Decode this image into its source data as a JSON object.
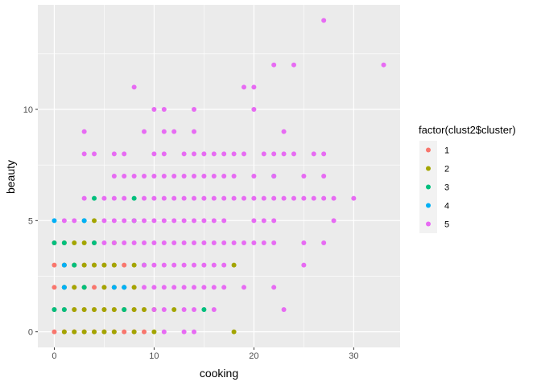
{
  "chart_data": {
    "type": "scatter",
    "xlabel": "cooking",
    "ylabel": "beauty",
    "xlim": [
      -1.65,
      34.65
    ],
    "ylim": [
      -0.7,
      14.7
    ],
    "x_ticks": [
      0,
      10,
      20,
      30
    ],
    "y_ticks": [
      0,
      5,
      10
    ],
    "x_tick_labels": [
      "0",
      "10",
      "20",
      "30"
    ],
    "y_tick_labels": [
      "0",
      "5",
      "10"
    ],
    "grid": true,
    "legend": {
      "title": "factor(clust2$cluster)",
      "position": "right",
      "entries": [
        "1",
        "2",
        "3",
        "4",
        "5"
      ]
    },
    "colors": {
      "1": "#F8766D",
      "2": "#A3A500",
      "3": "#00BF7D",
      "4": "#00B0F6",
      "5": "#E76BF3",
      "panel": "#EBEBEB"
    },
    "series": [
      {
        "name": "1",
        "points": [
          [
            0,
            0
          ],
          [
            1,
            0
          ],
          [
            2,
            0
          ],
          [
            3,
            0
          ],
          [
            4,
            0
          ],
          [
            5,
            0
          ],
          [
            6,
            0
          ],
          [
            7,
            0
          ],
          [
            8,
            0
          ],
          [
            9,
            0
          ],
          [
            0,
            1
          ],
          [
            1,
            1
          ],
          [
            2,
            1
          ],
          [
            3,
            1
          ],
          [
            4,
            1
          ],
          [
            5,
            1
          ],
          [
            6,
            1
          ],
          [
            7,
            1
          ],
          [
            8,
            1
          ],
          [
            9,
            1
          ],
          [
            0,
            2
          ],
          [
            1,
            2
          ],
          [
            2,
            2
          ],
          [
            3,
            2
          ],
          [
            4,
            2
          ],
          [
            5,
            2
          ],
          [
            6,
            2
          ],
          [
            7,
            2
          ],
          [
            8,
            2
          ],
          [
            0,
            3
          ],
          [
            1,
            3
          ],
          [
            2,
            3
          ],
          [
            3,
            3
          ],
          [
            4,
            3
          ],
          [
            5,
            3
          ],
          [
            6,
            3
          ],
          [
            7,
            3
          ],
          [
            0,
            4
          ],
          [
            4,
            4
          ]
        ]
      },
      {
        "name": "2",
        "points": [
          [
            1,
            0
          ],
          [
            2,
            0
          ],
          [
            3,
            0
          ],
          [
            4,
            0
          ],
          [
            5,
            0
          ],
          [
            6,
            0
          ],
          [
            8,
            0
          ],
          [
            10,
            0
          ],
          [
            18,
            0
          ],
          [
            2,
            1
          ],
          [
            3,
            1
          ],
          [
            4,
            1
          ],
          [
            5,
            1
          ],
          [
            6,
            1
          ],
          [
            7,
            1
          ],
          [
            8,
            1
          ],
          [
            9,
            1
          ],
          [
            10,
            1
          ],
          [
            12,
            1
          ],
          [
            1,
            2
          ],
          [
            2,
            2
          ],
          [
            3,
            2
          ],
          [
            5,
            2
          ],
          [
            6,
            2
          ],
          [
            8,
            2
          ],
          [
            1,
            3
          ],
          [
            2,
            3
          ],
          [
            3,
            3
          ],
          [
            4,
            3
          ],
          [
            5,
            3
          ],
          [
            6,
            3
          ],
          [
            8,
            3
          ],
          [
            18,
            3
          ],
          [
            1,
            4
          ],
          [
            2,
            4
          ],
          [
            3,
            4
          ],
          [
            6,
            4
          ],
          [
            4,
            5
          ]
        ]
      },
      {
        "name": "3",
        "points": [
          [
            0,
            1
          ],
          [
            1,
            1
          ],
          [
            7,
            1
          ],
          [
            15,
            1
          ],
          [
            1,
            2
          ],
          [
            3,
            2
          ],
          [
            7,
            2
          ],
          [
            2,
            3
          ],
          [
            9,
            3
          ],
          [
            0,
            4
          ],
          [
            1,
            4
          ],
          [
            4,
            4
          ],
          [
            8,
            5
          ],
          [
            3,
            5
          ],
          [
            4,
            6
          ],
          [
            8,
            6
          ]
        ]
      },
      {
        "name": "4",
        "points": [
          [
            0,
            5
          ],
          [
            3,
            5
          ],
          [
            1,
            2
          ],
          [
            6,
            2
          ],
          [
            7,
            2
          ],
          [
            1,
            3
          ],
          [
            22,
            7
          ]
        ]
      },
      {
        "name": "5",
        "points": [
          [
            27,
            14
          ],
          [
            33,
            12
          ],
          [
            22,
            12
          ],
          [
            24,
            12
          ],
          [
            19,
            11
          ],
          [
            20,
            11
          ],
          [
            8,
            11
          ],
          [
            10,
            10
          ],
          [
            11,
            10
          ],
          [
            14,
            10
          ],
          [
            20,
            10
          ],
          [
            3,
            9
          ],
          [
            9,
            9
          ],
          [
            11,
            9
          ],
          [
            12,
            9
          ],
          [
            14,
            9
          ],
          [
            23,
            9
          ],
          [
            3,
            8
          ],
          [
            4,
            8
          ],
          [
            6,
            8
          ],
          [
            7,
            8
          ],
          [
            10,
            8
          ],
          [
            11,
            8
          ],
          [
            13,
            8
          ],
          [
            14,
            8
          ],
          [
            15,
            8
          ],
          [
            16,
            8
          ],
          [
            17,
            8
          ],
          [
            18,
            8
          ],
          [
            19,
            8
          ],
          [
            21,
            8
          ],
          [
            22,
            8
          ],
          [
            23,
            8
          ],
          [
            24,
            8
          ],
          [
            26,
            8
          ],
          [
            27,
            8
          ],
          [
            6,
            7
          ],
          [
            7,
            7
          ],
          [
            8,
            7
          ],
          [
            9,
            7
          ],
          [
            10,
            7
          ],
          [
            11,
            7
          ],
          [
            12,
            7
          ],
          [
            13,
            7
          ],
          [
            14,
            7
          ],
          [
            15,
            7
          ],
          [
            16,
            7
          ],
          [
            17,
            7
          ],
          [
            18,
            7
          ],
          [
            20,
            7
          ],
          [
            22,
            7
          ],
          [
            25,
            7
          ],
          [
            27,
            7
          ],
          [
            3,
            6
          ],
          [
            5,
            6
          ],
          [
            6,
            6
          ],
          [
            7,
            6
          ],
          [
            9,
            6
          ],
          [
            10,
            6
          ],
          [
            11,
            6
          ],
          [
            12,
            6
          ],
          [
            13,
            6
          ],
          [
            14,
            6
          ],
          [
            15,
            6
          ],
          [
            16,
            6
          ],
          [
            17,
            6
          ],
          [
            18,
            6
          ],
          [
            19,
            6
          ],
          [
            20,
            6
          ],
          [
            21,
            6
          ],
          [
            22,
            6
          ],
          [
            23,
            6
          ],
          [
            24,
            6
          ],
          [
            25,
            6
          ],
          [
            26,
            6
          ],
          [
            27,
            6
          ],
          [
            28,
            6
          ],
          [
            30,
            6
          ],
          [
            1,
            5
          ],
          [
            2,
            5
          ],
          [
            5,
            5
          ],
          [
            6,
            5
          ],
          [
            7,
            5
          ],
          [
            8,
            5
          ],
          [
            9,
            5
          ],
          [
            10,
            5
          ],
          [
            11,
            5
          ],
          [
            12,
            5
          ],
          [
            13,
            5
          ],
          [
            14,
            5
          ],
          [
            15,
            5
          ],
          [
            16,
            5
          ],
          [
            17,
            5
          ],
          [
            20,
            5
          ],
          [
            21,
            5
          ],
          [
            22,
            5
          ],
          [
            28,
            5
          ],
          [
            5,
            4
          ],
          [
            6,
            4
          ],
          [
            7,
            4
          ],
          [
            8,
            4
          ],
          [
            9,
            4
          ],
          [
            10,
            4
          ],
          [
            11,
            4
          ],
          [
            12,
            4
          ],
          [
            13,
            4
          ],
          [
            14,
            4
          ],
          [
            15,
            4
          ],
          [
            16,
            4
          ],
          [
            17,
            4
          ],
          [
            18,
            4
          ],
          [
            19,
            4
          ],
          [
            20,
            4
          ],
          [
            21,
            4
          ],
          [
            22,
            4
          ],
          [
            25,
            4
          ],
          [
            27,
            4
          ],
          [
            9,
            3
          ],
          [
            10,
            3
          ],
          [
            11,
            3
          ],
          [
            12,
            3
          ],
          [
            13,
            3
          ],
          [
            14,
            3
          ],
          [
            15,
            3
          ],
          [
            16,
            3
          ],
          [
            17,
            3
          ],
          [
            25,
            3
          ],
          [
            9,
            2
          ],
          [
            10,
            2
          ],
          [
            11,
            2
          ],
          [
            12,
            2
          ],
          [
            13,
            2
          ],
          [
            14,
            2
          ],
          [
            15,
            2
          ],
          [
            16,
            2
          ],
          [
            17,
            2
          ],
          [
            19,
            2
          ],
          [
            22,
            2
          ],
          [
            10,
            1
          ],
          [
            11,
            1
          ],
          [
            13,
            1
          ],
          [
            14,
            1
          ],
          [
            16,
            1
          ],
          [
            23,
            1
          ],
          [
            11,
            0
          ],
          [
            13,
            0
          ],
          [
            14,
            0
          ]
        ]
      }
    ]
  }
}
